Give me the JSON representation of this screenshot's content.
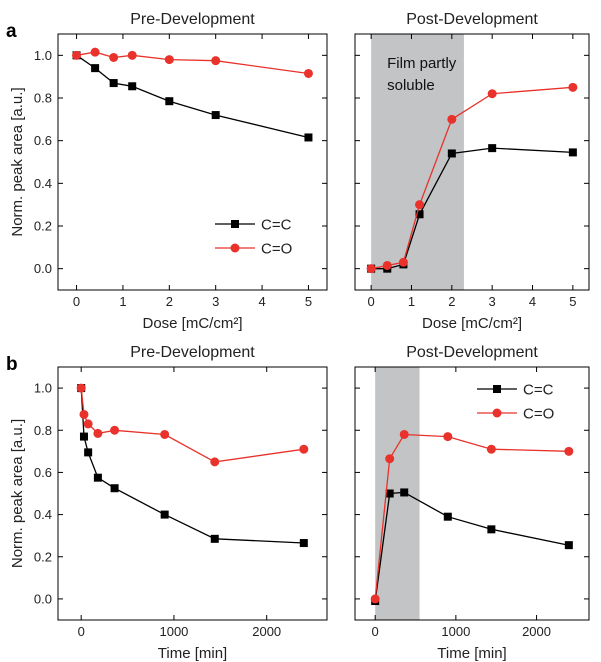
{
  "colors": {
    "c_c": "#000000",
    "c_o": "#e8322b",
    "shade": "#c3c4c6"
  },
  "chart_data": [
    {
      "id": "a-pre",
      "panel_label": "a",
      "type": "line",
      "title": "Pre-Development",
      "xlabel": "Dose [mC/cm²]",
      "ylabel": "Norm. peak area [a.u.]",
      "xlim": [
        -0.4,
        5.4
      ],
      "ylim": [
        -0.1,
        1.1
      ],
      "xticks": [
        0,
        1,
        2,
        3,
        4,
        5
      ],
      "yticks": [
        0.0,
        0.2,
        0.4,
        0.6,
        0.8,
        1.0
      ],
      "ytick_labels": [
        "0.0",
        "0.2",
        "0.4",
        "0.6",
        "0.8",
        "1.0"
      ],
      "grid": false,
      "legend": {
        "position": "bottom-right",
        "entries": [
          "C=C",
          "C=O"
        ]
      },
      "series": [
        {
          "name": "C=C",
          "marker": "square",
          "color": "#000000",
          "x": [
            0,
            0.4,
            0.8,
            1.2,
            2,
            3,
            5
          ],
          "y": [
            1.0,
            0.94,
            0.87,
            0.855,
            0.785,
            0.72,
            0.615
          ]
        },
        {
          "name": "C=O",
          "marker": "circle",
          "color": "#e8322b",
          "x": [
            0,
            0.4,
            0.8,
            1.2,
            2,
            3,
            5
          ],
          "y": [
            1.0,
            1.015,
            0.99,
            1.0,
            0.98,
            0.975,
            0.915
          ]
        }
      ]
    },
    {
      "id": "a-post",
      "type": "line",
      "title": "Post-Development",
      "xlabel": "Dose [mC/cm²]",
      "xlim": [
        -0.4,
        5.4
      ],
      "ylim": [
        -0.1,
        1.1
      ],
      "xticks": [
        0,
        1,
        2,
        3,
        4,
        5
      ],
      "yticks": [
        0.0,
        0.2,
        0.4,
        0.6,
        0.8,
        1.0
      ],
      "grid": false,
      "shaded_region": {
        "x": [
          0,
          2.3
        ],
        "annotation": [
          "Film partly",
          "soluble"
        ]
      },
      "series": [
        {
          "name": "C=C",
          "marker": "square",
          "color": "#000000",
          "x": [
            0,
            0.4,
            0.8,
            1.2,
            2,
            3,
            5
          ],
          "y": [
            0.0,
            0.0,
            0.02,
            0.255,
            0.54,
            0.565,
            0.545
          ]
        },
        {
          "name": "C=O",
          "marker": "circle",
          "color": "#e8322b",
          "x": [
            0,
            0.4,
            0.8,
            1.2,
            2,
            3,
            5
          ],
          "y": [
            0.0,
            0.015,
            0.03,
            0.3,
            0.7,
            0.82,
            0.85
          ]
        }
      ]
    },
    {
      "id": "b-pre",
      "panel_label": "b",
      "type": "line",
      "title": "Pre-Development",
      "xlabel": "Time [min]",
      "ylabel": "Norm. peak area [a.u.]",
      "xlim": [
        -250,
        2650
      ],
      "ylim": [
        -0.1,
        1.1
      ],
      "xticks": [
        0,
        1000,
        2000
      ],
      "yticks": [
        0.0,
        0.2,
        0.4,
        0.6,
        0.8,
        1.0
      ],
      "ytick_labels": [
        "0.0",
        "0.2",
        "0.4",
        "0.6",
        "0.8",
        "1.0"
      ],
      "grid": false,
      "series": [
        {
          "name": "C=C",
          "marker": "square",
          "color": "#000000",
          "x": [
            0,
            30,
            75,
            180,
            360,
            900,
            1440,
            2400
          ],
          "y": [
            1.0,
            0.77,
            0.695,
            0.575,
            0.525,
            0.4,
            0.285,
            0.265
          ]
        },
        {
          "name": "C=O",
          "marker": "circle",
          "color": "#e8322b",
          "x": [
            0,
            30,
            75,
            180,
            360,
            900,
            1440,
            2400
          ],
          "y": [
            1.0,
            0.875,
            0.83,
            0.785,
            0.8,
            0.78,
            0.65,
            0.71
          ]
        }
      ]
    },
    {
      "id": "b-post",
      "type": "line",
      "title": "Post-Development",
      "xlabel": "Time [min]",
      "xlim": [
        -250,
        2650
      ],
      "ylim": [
        -0.1,
        1.1
      ],
      "xticks": [
        0,
        1000,
        2000
      ],
      "yticks": [
        0.0,
        0.2,
        0.4,
        0.6,
        0.8,
        1.0
      ],
      "grid": false,
      "shaded_region": {
        "x": [
          0,
          550
        ],
        "annotation": []
      },
      "legend": {
        "position": "top-right",
        "entries": [
          "C=C",
          "C=O"
        ]
      },
      "series": [
        {
          "name": "C=C",
          "marker": "square",
          "color": "#000000",
          "x": [
            0,
            180,
            360,
            900,
            1440,
            2400
          ],
          "y": [
            -0.01,
            0.5,
            0.505,
            0.39,
            0.33,
            0.255
          ]
        },
        {
          "name": "C=O",
          "marker": "circle",
          "color": "#e8322b",
          "x": [
            0,
            180,
            360,
            900,
            1440,
            2400
          ],
          "y": [
            0.0,
            0.665,
            0.78,
            0.77,
            0.71,
            0.7
          ]
        }
      ]
    }
  ]
}
